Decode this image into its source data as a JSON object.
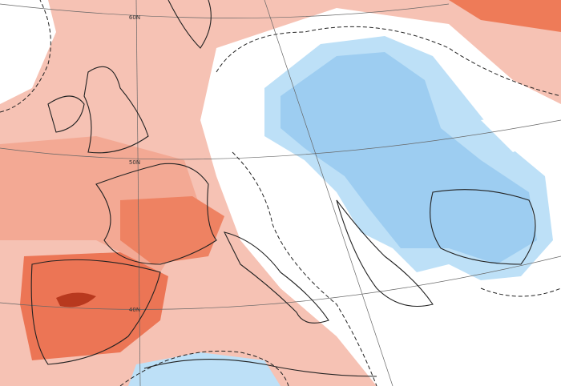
{
  "map": {
    "latitude_labels": [
      "60N",
      "50N",
      "40N"
    ]
  }
}
